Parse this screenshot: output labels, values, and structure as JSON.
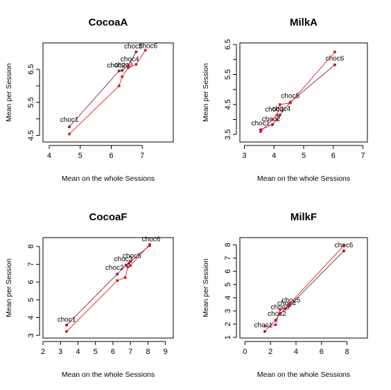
{
  "chart_data": [
    {
      "type": "scatter",
      "title": "CocoaA",
      "xlabel": "Mean on the whole Sessions",
      "ylabel": "Mean per Session",
      "xlim": [
        3.8,
        8.0
      ],
      "ylim": [
        4.3,
        7.3
      ],
      "xticks": [
        4,
        5,
        6,
        7
      ],
      "yticks": [
        4.5,
        5.5,
        6.5
      ],
      "series": [
        {
          "color": "#8b1a4a",
          "x": [
            4.65,
            6.25,
            6.35,
            6.55,
            6.8
          ],
          "y": [
            4.76,
            6.45,
            6.47,
            6.62,
            7.03
          ],
          "labels": [
            "choc1",
            "choc2",
            "choc3",
            "choc4",
            "choc5"
          ]
        },
        {
          "color": "#d91c1c",
          "x": [
            4.65,
            6.25,
            6.35,
            6.55,
            6.8,
            7.1
          ],
          "y": [
            4.54,
            6.0,
            6.28,
            6.55,
            6.65,
            7.08
          ],
          "labels": [
            "",
            "",
            "",
            "",
            "",
            "choc6"
          ]
        }
      ]
    },
    {
      "type": "scatter",
      "title": "MilkA",
      "xlabel": "Mean on the whole Sessions",
      "ylabel": "Mean per Session",
      "xlim": [
        2.85,
        7.15
      ],
      "ylim": [
        3.25,
        6.55
      ],
      "xticks": [
        3,
        4,
        5,
        6,
        7
      ],
      "yticks": [
        3.5,
        4.5,
        5.5,
        6.5
      ],
      "series": [
        {
          "color": "#8b1a4a",
          "x": [
            3.55,
            3.95,
            4.1,
            4.2,
            4.55,
            6.05
          ],
          "y": [
            3.66,
            3.83,
            4.0,
            4.15,
            4.58,
            5.82
          ],
          "labels": [
            "choc1",
            "choc2",
            "",
            "choc4",
            "choc5",
            "choc6"
          ]
        },
        {
          "color": "#d91c1c",
          "x": [
            3.55,
            3.95,
            4.1,
            4.2,
            4.55,
            6.05
          ],
          "y": [
            3.6,
            4.0,
            4.15,
            4.5,
            4.55,
            6.25
          ],
          "labels": [
            "",
            "",
            "choc3",
            "",
            "",
            ""
          ]
        }
      ]
    },
    {
      "type": "scatter",
      "title": "CocoaF",
      "xlabel": "Mean on the whole Sessions",
      "ylabel": "Mean per Session",
      "xlim": [
        2.0,
        9.45
      ],
      "ylim": [
        2.85,
        8.5
      ],
      "xticks": [
        2,
        3,
        4,
        5,
        6,
        7,
        8,
        9
      ],
      "yticks": [
        3,
        4,
        5,
        6,
        7,
        8
      ],
      "series": [
        {
          "color": "#8b1a4a",
          "x": [
            3.35,
            6.25,
            6.75,
            6.9,
            7.0,
            8.1
          ],
          "y": [
            3.58,
            6.45,
            6.95,
            7.05,
            7.15,
            8.05
          ],
          "labels": [
            "choc1",
            "choc2",
            "choc3",
            "",
            "choc5",
            "choc6"
          ]
        },
        {
          "color": "#d91c1c",
          "x": [
            3.35,
            6.25,
            6.7,
            6.85,
            7.0,
            8.1
          ],
          "y": [
            3.22,
            6.08,
            6.25,
            6.85,
            6.92,
            8.12
          ],
          "labels": [
            "",
            "",
            "",
            "",
            "",
            ""
          ]
        }
      ]
    },
    {
      "type": "scatter",
      "title": "MilkF",
      "xlabel": "Mean on the whole Sessions",
      "ylabel": "Mean per Session",
      "xlim": [
        -0.4,
        9.6
      ],
      "ylim": [
        0.95,
        8.55
      ],
      "xticks": [
        0,
        2,
        4,
        6,
        8
      ],
      "yticks": [
        1,
        2,
        3,
        4,
        5,
        6,
        7,
        8
      ],
      "series": [
        {
          "color": "#8b1a4a",
          "x": [
            1.55,
            2.4,
            2.75,
            3.15,
            3.5,
            7.75
          ],
          "y": [
            1.45,
            2.3,
            2.8,
            3.15,
            3.4,
            7.55
          ],
          "labels": [
            "choc1",
            "choc2",
            "choc3",
            "choc4",
            "choc5",
            "choc6"
          ]
        },
        {
          "color": "#d91c1c",
          "x": [
            1.55,
            2.4,
            2.75,
            3.15,
            3.5,
            7.75
          ],
          "y": [
            1.85,
            1.95,
            3.1,
            3.2,
            3.55,
            7.95
          ],
          "labels": [
            "",
            "",
            "",
            "",
            "",
            ""
          ]
        }
      ]
    }
  ]
}
